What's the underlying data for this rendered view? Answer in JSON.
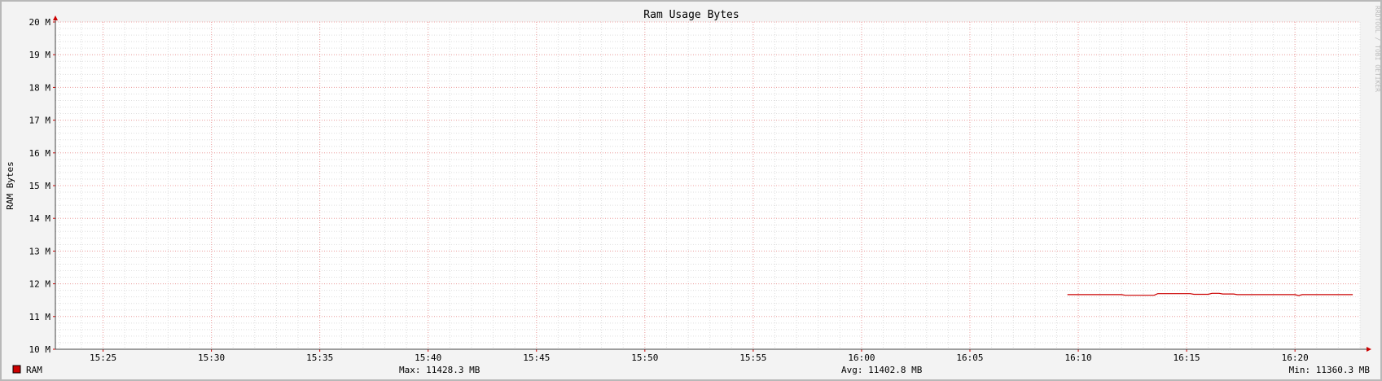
{
  "chart_data": {
    "type": "line",
    "title": "Ram Usage Bytes",
    "ylabel": "RAM Bytes",
    "xlabel": "",
    "watermark": "RRDTOOL / TOBI OETIKER",
    "x_ticks": [
      "15:25",
      "15:30",
      "15:35",
      "15:40",
      "15:45",
      "15:50",
      "15:55",
      "16:00",
      "16:05",
      "16:10",
      "16:15",
      "16:20"
    ],
    "y_ticks": [
      "10 M",
      "11 M",
      "12 M",
      "13 M",
      "14 M",
      "15 M",
      "16 M",
      "17 M",
      "18 M",
      "19 M",
      "20 M"
    ],
    "xlim": [
      "15:22:48",
      "16:23:00"
    ],
    "ylim": [
      10,
      20
    ],
    "grid": true,
    "series": [
      {
        "name": "RAM",
        "color": "#cc0000",
        "points": [
          [
            "16:09:30",
            11.67
          ],
          [
            "16:12:00",
            11.67
          ],
          [
            "16:12:10",
            11.65
          ],
          [
            "16:13:30",
            11.65
          ],
          [
            "16:13:40",
            11.7
          ],
          [
            "16:15:10",
            11.7
          ],
          [
            "16:15:20",
            11.68
          ],
          [
            "16:16:00",
            11.68
          ],
          [
            "16:16:10",
            11.71
          ],
          [
            "16:16:30",
            11.71
          ],
          [
            "16:16:40",
            11.69
          ],
          [
            "16:17:10",
            11.69
          ],
          [
            "16:17:20",
            11.67
          ],
          [
            "16:20:00",
            11.67
          ],
          [
            "16:20:10",
            11.64
          ],
          [
            "16:20:20",
            11.67
          ],
          [
            "16:22:40",
            11.67
          ]
        ]
      }
    ],
    "legend": {
      "label": "RAM",
      "max": "Max: 11428.3 MB",
      "avg": "Avg: 11402.8 MB",
      "min": "Min: 11360.3 MB"
    }
  }
}
